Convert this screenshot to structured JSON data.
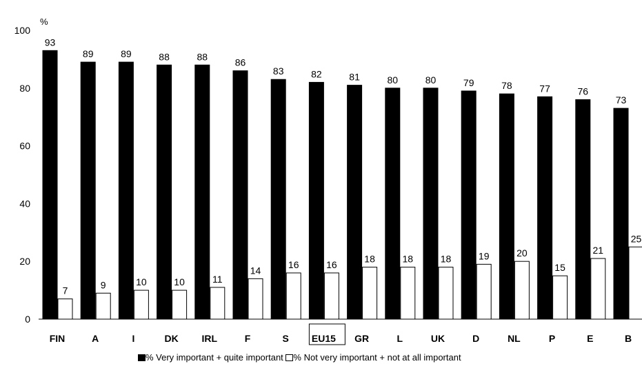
{
  "chart_data": {
    "type": "bar",
    "ylabel": "%",
    "ylim": [
      0,
      100
    ],
    "yticks": [
      0,
      20,
      40,
      60,
      80,
      100
    ],
    "categories": [
      "FIN",
      "A",
      "I",
      "DK",
      "IRL",
      "F",
      "S",
      "EU15",
      "GR",
      "L",
      "UK",
      "D",
      "NL",
      "P",
      "E",
      "B"
    ],
    "highlighted_category": "EU15",
    "series": [
      {
        "name": "% Very important + quite important",
        "color": "#000000",
        "values": [
          93,
          89,
          89,
          88,
          88,
          86,
          83,
          82,
          81,
          80,
          80,
          79,
          78,
          77,
          76,
          73
        ]
      },
      {
        "name": "% Not very important + not at all important",
        "color": "#ffffff",
        "values": [
          7,
          9,
          10,
          10,
          11,
          14,
          16,
          16,
          18,
          18,
          18,
          19,
          20,
          15,
          21,
          25
        ]
      }
    ],
    "legend_position": "bottom",
    "grid": false
  }
}
